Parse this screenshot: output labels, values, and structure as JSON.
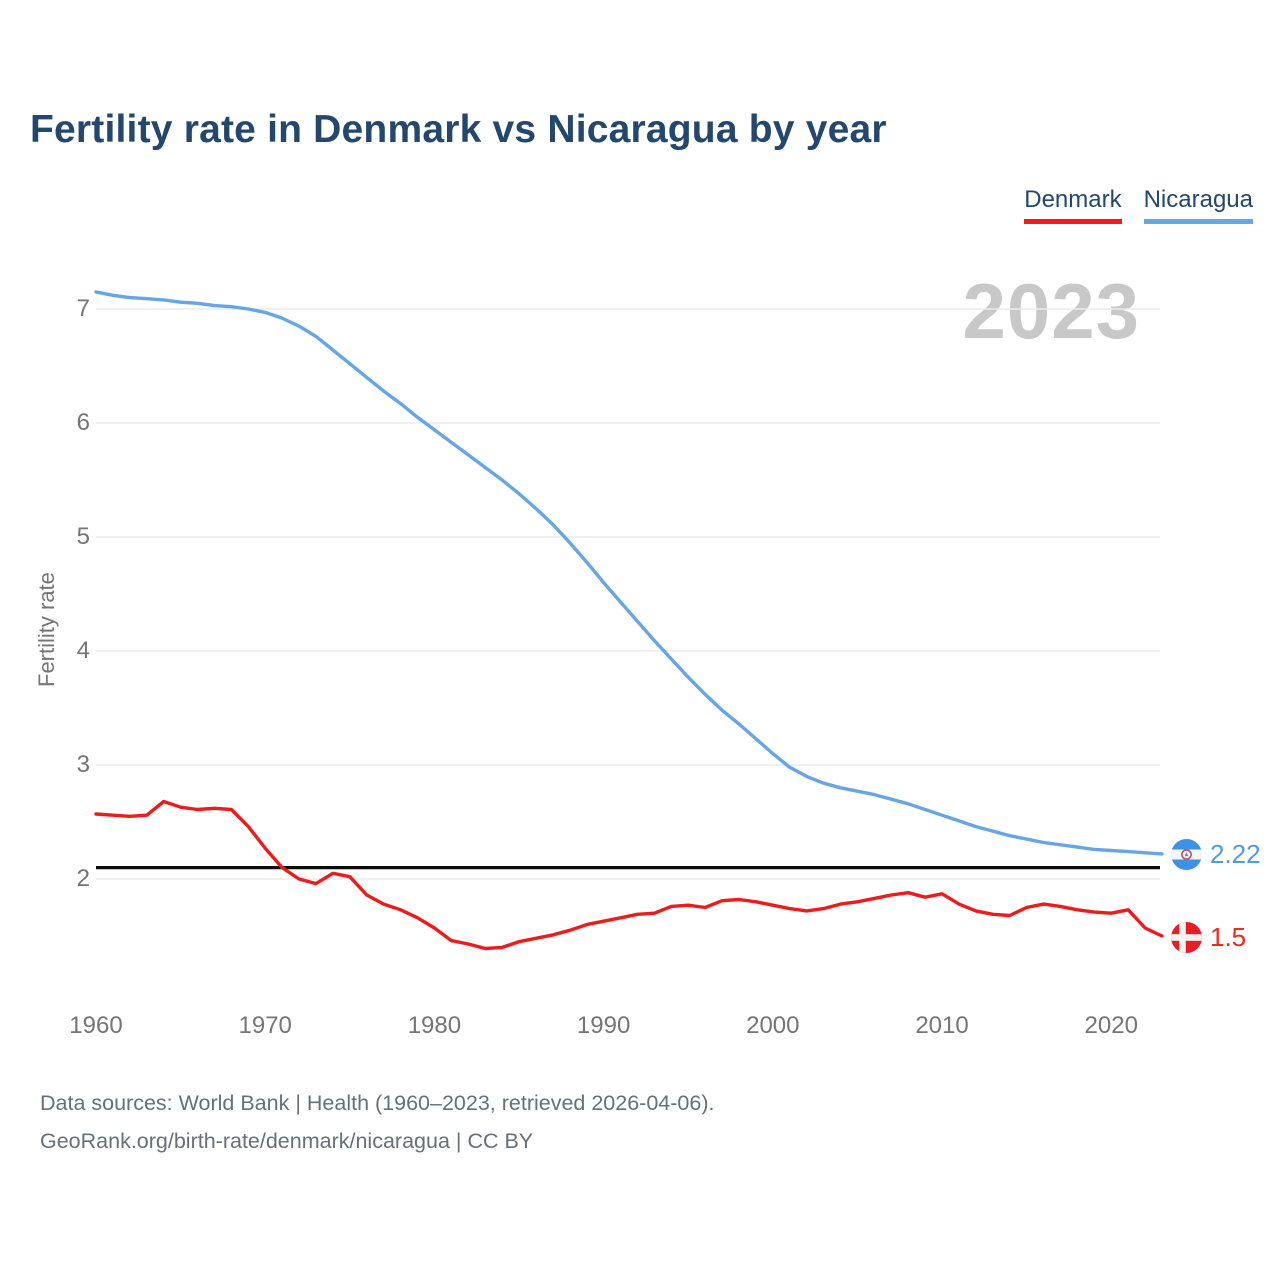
{
  "title": "Fertility rate in Denmark vs Nicaragua by year",
  "watermark": "2023",
  "legend": {
    "denmark_label": "Denmark",
    "nicaragua_label": "Nicaragua"
  },
  "y_axis": {
    "label": "Fertility rate",
    "ticks": [
      7,
      6,
      5,
      4,
      3,
      2
    ]
  },
  "x_axis": {
    "ticks": [
      1960,
      1970,
      1980,
      1990,
      2000,
      2010,
      2020
    ]
  },
  "end_labels": {
    "nicaragua_value": "2.22",
    "denmark_value": "1.5"
  },
  "footer": {
    "line1": "Data sources: World Bank | Health (1960–2023, retrieved 2026-04-06).",
    "line2": "GeoRank.org/birth-rate/denmark/nicaragua | CC BY"
  },
  "colors": {
    "denmark_line": "#ed1c1c",
    "nicaragua_line": "#68a5e4",
    "denmark_flag_red": "#e81c24",
    "nicaragua_flag_blue": "#3e92e6",
    "reference_line": "#0a0a0a",
    "gridline": "#ebebeb",
    "title_navy": "#24476d",
    "tick_gray": "#757575",
    "watermark_gray": "#c8c8c8"
  },
  "chart_data": {
    "type": "line",
    "title": "Fertility rate in Denmark vs Nicaragua by year",
    "ylabel": "Fertility rate",
    "xlim": [
      1960,
      2023
    ],
    "ylim": [
      1.3,
      7.3
    ],
    "grid": "horizontal",
    "legend_position": "top-right",
    "reference_line": 2.1,
    "x": [
      1960,
      1961,
      1962,
      1963,
      1964,
      1965,
      1966,
      1967,
      1968,
      1969,
      1970,
      1971,
      1972,
      1973,
      1974,
      1975,
      1976,
      1977,
      1978,
      1979,
      1980,
      1981,
      1982,
      1983,
      1984,
      1985,
      1986,
      1987,
      1988,
      1989,
      1990,
      1991,
      1992,
      1993,
      1994,
      1995,
      1996,
      1997,
      1998,
      1999,
      2000,
      2001,
      2002,
      2003,
      2004,
      2005,
      2006,
      2007,
      2008,
      2009,
      2010,
      2011,
      2012,
      2013,
      2014,
      2015,
      2016,
      2017,
      2018,
      2019,
      2020,
      2021,
      2022,
      2023
    ],
    "series": [
      {
        "name": "Denmark",
        "final_value": 1.5,
        "values": [
          2.57,
          2.56,
          2.55,
          2.56,
          2.68,
          2.63,
          2.61,
          2.62,
          2.61,
          2.46,
          2.27,
          2.1,
          2.0,
          1.96,
          2.05,
          2.02,
          1.86,
          1.78,
          1.73,
          1.66,
          1.57,
          1.46,
          1.43,
          1.39,
          1.4,
          1.45,
          1.48,
          1.51,
          1.55,
          1.6,
          1.63,
          1.66,
          1.69,
          1.7,
          1.76,
          1.77,
          1.75,
          1.81,
          1.82,
          1.8,
          1.77,
          1.74,
          1.72,
          1.74,
          1.78,
          1.8,
          1.83,
          1.86,
          1.88,
          1.84,
          1.87,
          1.78,
          1.72,
          1.69,
          1.68,
          1.75,
          1.78,
          1.76,
          1.73,
          1.71,
          1.7,
          1.73,
          1.57,
          1.5
        ]
      },
      {
        "name": "Nicaragua",
        "final_value": 2.22,
        "values": [
          7.15,
          7.12,
          7.1,
          7.09,
          7.08,
          7.06,
          7.05,
          7.03,
          7.02,
          7.0,
          6.97,
          6.92,
          6.85,
          6.76,
          6.64,
          6.52,
          6.4,
          6.28,
          6.17,
          6.05,
          5.94,
          5.83,
          5.72,
          5.61,
          5.5,
          5.38,
          5.25,
          5.11,
          4.95,
          4.78,
          4.6,
          4.43,
          4.26,
          4.09,
          3.93,
          3.77,
          3.62,
          3.48,
          3.36,
          3.23,
          3.1,
          2.98,
          2.9,
          2.84,
          2.8,
          2.77,
          2.74,
          2.7,
          2.66,
          2.61,
          2.56,
          2.51,
          2.46,
          2.42,
          2.38,
          2.35,
          2.32,
          2.3,
          2.28,
          2.26,
          2.25,
          2.24,
          2.23,
          2.22
        ]
      }
    ]
  }
}
